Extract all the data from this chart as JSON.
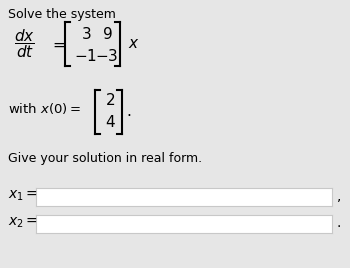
{
  "bg_color": "#e6e6e6",
  "title": "Solve the system",
  "give_text": "Give your solution in real form.",
  "input_box_color": "#ffffff",
  "input_box_edge": "#c8c8c8",
  "comma": ",",
  "dot": "."
}
